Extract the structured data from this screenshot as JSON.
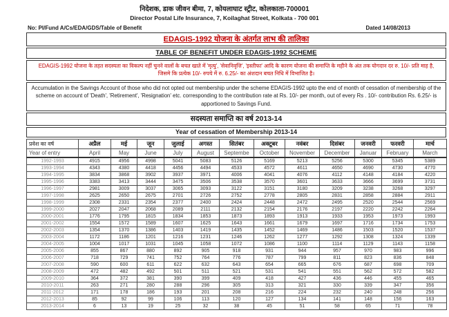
{
  "letterhead": {
    "line1_hi": "निदेशक, डाक जीवन बीमा, 7, कोयलाघाट स्ट्रीट, कोलकाता-700001",
    "line2_en": "Director Postal Life Insurance, 7, Koilaghat Street, Kolkata - 700 001",
    "ref_no": "No: PI/Fund A/Cs/EDA/GDS/Table of Benefit",
    "dated": "Dated 14/08/2013"
  },
  "titles": {
    "hi": "EDAGIS-1992  योजना के अंतर्गत लाभ की तालिका",
    "en": "TABLE OF BENEFIT UNDER EDAGIS-1992 SCHEME"
  },
  "notes": {
    "hi": "EDAGIS-1992 योजना के तहत सदस्यता का विकल्प नहीं चुनने वालों के बचत खाते में 'मृत्यु', 'सेवानिवृत्ति', 'इस्तीफा' आदि के कारण योजना की समाप्ति के महीने के अंत तक योगदान दर रु. 10/- प्रति माह है, जिसमे  कि  प्रत्येक 10/- रुपये में रु. 6.25/- का अंशदान बचत निधि में विभाजित है।",
    "en": "Accumulation in the Savings Account of those who did not opted out membership under the scheme EDAGIS-1992 upto the end of month of cessation of  membership of the scheme on account of 'Death',  'Retirement',  'Resignation' etc. corresponding to the contribution rate at Rs. 10/- per month, out of every Rs . 10/- contribution  Rs. 6.25/- is apportioned to Savings Fund."
  },
  "cessation": {
    "hi": "सदस्यता समाप्ति का वर्ष 2013-14",
    "en": "Year of cessation of Membership 2013-14"
  },
  "table": {
    "corner_hi": "प्रवेश का वर्ष",
    "corner_en": "Year of entry",
    "months_hi": [
      "अप्रैल",
      "मई",
      "जून",
      "जुलाई",
      "अगस्त",
      "सितंबर",
      "अक्टूबर",
      "नवंबर",
      "दिसंबर",
      "जनवरी",
      "फरवरी",
      "मार्च"
    ],
    "months_en": [
      "April",
      "May",
      "June",
      "July",
      "August",
      "Septembe",
      "October",
      "November",
      "December",
      "Januar",
      "February",
      "March"
    ],
    "rows": [
      {
        "year": "1992-1993",
        "values": [
          4915,
          4956,
          4998,
          5041,
          5083,
          5126,
          5169,
          5213,
          5256,
          5300,
          5345,
          5389
        ]
      },
      {
        "year": "1993-1994",
        "values": [
          4343,
          4380,
          4418,
          4456,
          4494,
          4533,
          4572,
          4611,
          4650,
          4690,
          4730,
          4770
        ]
      },
      {
        "year": "1994-1995",
        "values": [
          3834,
          3868,
          3902,
          3937,
          3971,
          4006,
          4041,
          4076,
          4112,
          4148,
          4184,
          4220
        ]
      },
      {
        "year": "1995-1996",
        "values": [
          3383,
          3413,
          3444,
          3475,
          3506,
          3538,
          3570,
          3601,
          3633,
          3666,
          3699,
          3731
        ]
      },
      {
        "year": "1996-1997",
        "values": [
          2981,
          3009,
          3037,
          3065,
          3093,
          3122,
          3151,
          3180,
          3209,
          3238,
          3268,
          3297
        ]
      },
      {
        "year": "1997-1998",
        "values": [
          2625,
          2650,
          2675,
          2701,
          2726,
          2752,
          2778,
          2805,
          2831,
          2858,
          2884,
          2911
        ]
      },
      {
        "year": "1998-1999",
        "values": [
          2308,
          2331,
          2354,
          2377,
          2400,
          2424,
          2448,
          2472,
          2495,
          2520,
          2544,
          2569
        ]
      },
      {
        "year": "1999-2000",
        "values": [
          2027,
          2047,
          2068,
          2089,
          2111,
          2132,
          2154,
          2176,
          2197,
          2220,
          2242,
          2264
        ]
      },
      {
        "year": "2000-2001",
        "values": [
          1776,
          1795,
          1815,
          1834,
          1853,
          1873,
          1893,
          1913,
          1933,
          1953,
          1973,
          1993
        ]
      },
      {
        "year": "2001-2002",
        "values": [
          1554,
          1572,
          1589,
          1607,
          1625,
          1643,
          1661,
          1679,
          1697,
          1716,
          1734,
          1753
        ]
      },
      {
        "year": "2002-2003",
        "values": [
          1354,
          1370,
          1386,
          1403,
          1419,
          1435,
          1452,
          1469,
          1486,
          1503,
          1520,
          1537
        ]
      },
      {
        "year": "2003-2004",
        "values": [
          1172,
          1186,
          1201,
          1216,
          1231,
          1246,
          1262,
          1277,
          1292,
          1308,
          1324,
          1339
        ]
      },
      {
        "year": "2004-2005",
        "values": [
          1004,
          1017,
          1031,
          1045,
          1058,
          1072,
          1086,
          1100,
          1114,
          1129,
          1143,
          1158
        ]
      },
      {
        "year": "2005-2006",
        "values": [
          855,
          867,
          880,
          892,
          905,
          918,
          931,
          944,
          957,
          970,
          983,
          996
        ]
      },
      {
        "year": "2006-2007",
        "values": [
          718,
          729,
          741,
          752,
          764,
          776,
          787,
          799,
          811,
          823,
          836,
          848
        ]
      },
      {
        "year": "2007-2008",
        "values": [
          590,
          600,
          611,
          622,
          632,
          643,
          654,
          665,
          676,
          687,
          698,
          709
        ]
      },
      {
        "year": "2008-2009",
        "values": [
          472,
          482,
          492,
          501,
          511,
          521,
          531,
          541,
          551,
          562,
          572,
          582
        ]
      },
      {
        "year": "2009-2010",
        "values": [
          364,
          372,
          381,
          390,
          399,
          409,
          418,
          427,
          436,
          446,
          455,
          465
        ]
      },
      {
        "year": "2010-2011",
        "values": [
          263,
          271,
          280,
          288,
          296,
          305,
          313,
          321,
          330,
          339,
          347,
          356
        ]
      },
      {
        "year": "2011-2012",
        "values": [
          171,
          178,
          186,
          193,
          201,
          208,
          216,
          224,
          232,
          240,
          248,
          256
        ]
      },
      {
        "year": "2012-2013",
        "values": [
          85,
          92,
          99,
          106,
          113,
          120,
          127,
          134,
          141,
          148,
          156,
          163
        ]
      },
      {
        "year": "2013-2014",
        "values": [
          6,
          13,
          19,
          25,
          32,
          38,
          45,
          51,
          58,
          65,
          71,
          78
        ]
      }
    ]
  },
  "colors": {
    "accent_red": "#c00000"
  }
}
